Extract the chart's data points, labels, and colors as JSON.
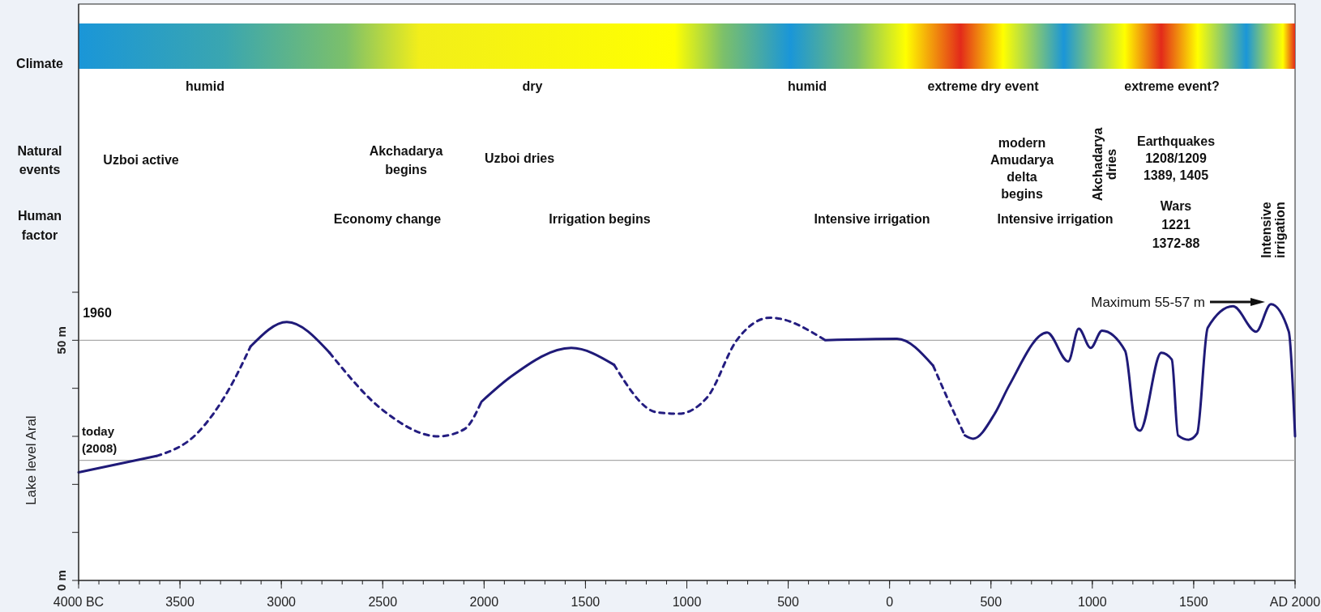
{
  "chart_data": {
    "type": "line",
    "ylabel": "Lake level Aral",
    "xlim": [
      -4000,
      2000
    ],
    "xticks": [
      {
        "value": -4000,
        "label": "4000 BC"
      },
      {
        "value": -3500,
        "label": "3500"
      },
      {
        "value": -3000,
        "label": "3000"
      },
      {
        "value": -2500,
        "label": "2500"
      },
      {
        "value": -2000,
        "label": "2000"
      },
      {
        "value": -1500,
        "label": "1500"
      },
      {
        "value": -1000,
        "label": "1000"
      },
      {
        "value": -500,
        "label": "500"
      },
      0,
      500,
      1000,
      1500,
      {
        "value": 2000,
        "label": "AD 2000"
      }
    ],
    "ylim": [
      0,
      120
    ],
    "yticks": [
      {
        "value": 0,
        "label": "0 m"
      },
      {
        "value": 10,
        "label": null
      },
      {
        "value": 20,
        "label": null
      },
      {
        "value": 30,
        "label": null
      },
      {
        "value": 40,
        "label": null
      },
      {
        "value": 50,
        "label": "50 m"
      },
      {
        "value": 60,
        "label": null
      }
    ],
    "grid": false,
    "legend": false,
    "marker": "none",
    "ref_lines": [
      {
        "axis": "y",
        "value": 50,
        "color": "#aaaaaa"
      },
      {
        "axis": "y",
        "value": 25,
        "label": "today (2008)",
        "color": "#aaaaaa"
      }
    ],
    "x": [
      -4000,
      -3616,
      -3416,
      -3257,
      -3152,
      -2973,
      -2762,
      -2498,
      -2224,
      -2097,
      -2013,
      -1865,
      -1570,
      -1359,
      -1148,
      -1042,
      -900,
      -754,
      -588,
      -317,
      37,
      215,
      290,
      371,
      412,
      517,
      590,
      777,
      881,
      933,
      992,
      1048,
      1162,
      1215,
      1235,
      1340,
      1392,
      1423,
      1475,
      1517,
      1569,
      1694,
      1808,
      1881,
      1969,
      2000
    ],
    "series": [
      {
        "color": "#1f1a78",
        "line_style": "solid",
        "values": [
          22.5,
          25.9,
          null,
          null,
          48.7,
          53.8,
          47.4,
          null,
          null,
          null,
          37.2,
          42.5,
          48.4,
          44.9,
          null,
          null,
          null,
          null,
          null,
          50,
          50.3,
          44.7,
          null,
          30.2,
          29.5,
          34.6,
          40.6,
          51.6,
          45.6,
          52.4,
          48.4,
          52.0,
          47.8,
          31.9,
          31.2,
          47.4,
          46.0,
          30.2,
          29.3,
          30.6,
          52.6,
          57.1,
          51.8,
          57.5,
          51.8,
          30
        ]
      },
      {
        "color": "#241d80",
        "line_style": "dashed",
        "values": [
          null,
          25.9,
          30.6,
          39.9,
          48.7,
          null,
          47.4,
          35.4,
          30.0,
          31.5,
          37.2,
          null,
          null,
          44.9,
          35.0,
          34.7,
          38.1,
          50,
          54.7,
          50,
          null,
          44.7,
          37.5,
          30.2,
          null,
          null,
          null,
          null,
          null,
          null,
          null,
          null,
          null,
          null,
          null,
          null,
          null,
          null,
          null,
          null,
          null,
          null,
          null,
          null,
          null,
          null
        ]
      }
    ],
    "annotations": [
      "Climate",
      "Natural\nevents",
      "Human\nfactor",
      "humid",
      "dry",
      "humid",
      "extreme dry event",
      "extreme event?",
      "Uzboi active",
      "Akchadarya\nbegins",
      "Uzboi dries",
      "modern\nAmudarya\ndelta\nbegins",
      "Akchadarya\ndries",
      "Earthquakes\n1208/1209\n1389, 1405",
      "Economy change",
      "Irrigation begins",
      "Intensive irrigation",
      "Intensive irrigation",
      "Wars\n1221\n1372-88",
      "Intensive\nirrigation",
      "1960",
      "Maximum 55-57 m"
    ]
  }
}
